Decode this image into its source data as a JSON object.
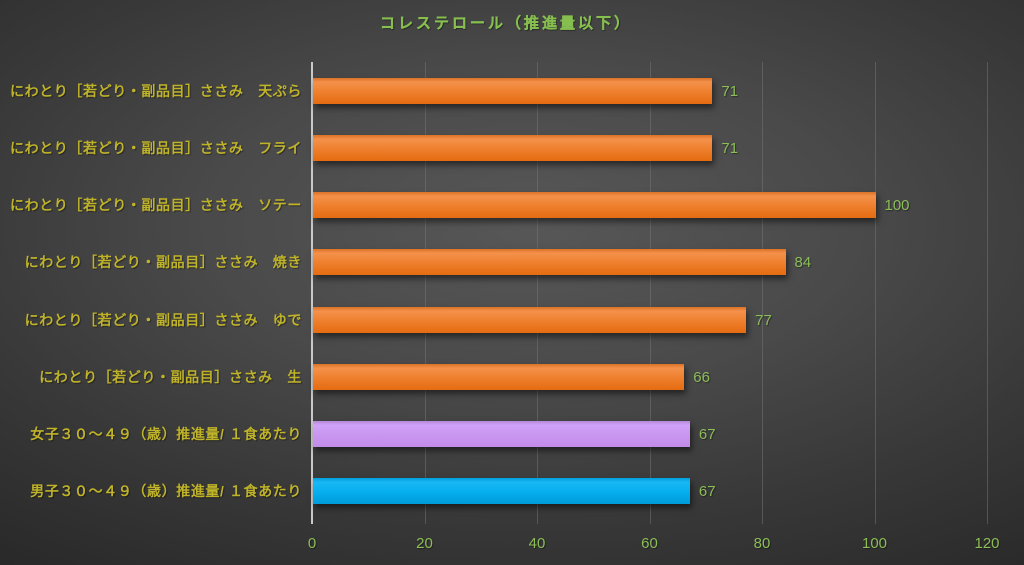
{
  "title": "コレステロール（推進量以下）",
  "colors": {
    "title": "#86be4f",
    "category_label": "#bfb32a",
    "value_label": "#8cbe57",
    "tick_label": "#8cbe57",
    "gridline": "rgba(120,120,120,0.5)",
    "axis_line": "#c9c9c9",
    "bar_gradients": {
      "orange": [
        "#db7226",
        "#f4914a",
        "#ee7f2d",
        "#e56b10"
      ],
      "purple": [
        "#b488d9",
        "#d0a2f8",
        "#c996f0",
        "#c18ce8"
      ],
      "blue": [
        "#009fdd",
        "#19b8f4",
        "#06aeee",
        "#009bd8"
      ]
    }
  },
  "chart_data": {
    "type": "bar",
    "orientation": "horizontal",
    "title": "コレステロール（推進量以下）",
    "categories": [
      "にわとり［若どり・副品目］ささみ　天ぷら",
      "にわとり［若どり・副品目］ささみ　フライ",
      "にわとり［若どり・副品目］ささみ　ソテー",
      "にわとり［若どり・副品目］ささみ　焼き",
      "にわとり［若どり・副品目］ささみ　ゆで",
      "にわとり［若どり・副品目］ささみ　生",
      "女子３０～４９（歳）推進量/ １食あたり",
      "男子３０～４９（歳）推進量/ １食あたり"
    ],
    "values": [
      71,
      71,
      100,
      84,
      77,
      66,
      67,
      67
    ],
    "bar_colors": [
      "orange",
      "orange",
      "orange",
      "orange",
      "orange",
      "orange",
      "purple",
      "blue"
    ],
    "xlabel": "",
    "ylabel": "",
    "xlim": [
      0,
      120
    ],
    "xticks": [
      0,
      20,
      40,
      60,
      80,
      100,
      120
    ],
    "grid": "vertical",
    "legend": "none"
  }
}
